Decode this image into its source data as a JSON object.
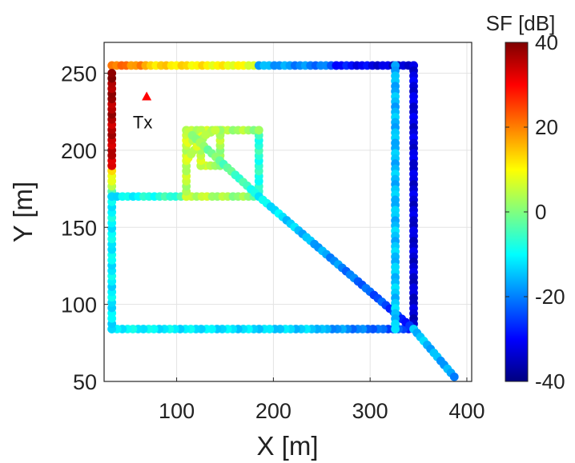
{
  "chart_data": {
    "type": "scatter",
    "xlabel": "X [m]",
    "ylabel": "Y [m]",
    "xlim": [
      25,
      405
    ],
    "ylim": [
      50,
      270
    ],
    "xticks": [
      100,
      200,
      300,
      400
    ],
    "yticks": [
      50,
      100,
      150,
      200,
      250
    ],
    "grid": true,
    "colorbar": {
      "title": "SF [dB]",
      "range": [
        -40,
        40
      ],
      "ticks": [
        40,
        20,
        0,
        -20,
        -40
      ],
      "ticklabels": [
        "40",
        "20",
        "0",
        "-20",
        "-40"
      ],
      "colormap": "jet"
    },
    "transmitter": {
      "label": "Tx",
      "x": 69,
      "y": 235,
      "color": "#ff0000"
    },
    "routes": [
      {
        "from": [
          33,
          255
        ],
        "to": [
          68,
          255
        ],
        "sf": [
          22,
          18
        ]
      },
      {
        "from": [
          68,
          255
        ],
        "to": [
          185,
          255
        ],
        "sf": [
          14,
          8
        ]
      },
      {
        "from": [
          185,
          255
        ],
        "to": [
          265,
          255
        ],
        "sf": [
          -16,
          -22
        ]
      },
      {
        "from": [
          265,
          255
        ],
        "to": [
          345,
          255
        ],
        "sf": [
          -28,
          -36
        ]
      },
      {
        "from": [
          345,
          255
        ],
        "to": [
          345,
          84
        ],
        "sf": [
          -32,
          -34
        ]
      },
      {
        "from": [
          345,
          84
        ],
        "to": [
          245,
          84
        ],
        "sf": [
          -26,
          -16
        ]
      },
      {
        "from": [
          245,
          84
        ],
        "to": [
          33,
          84
        ],
        "sf": [
          -14,
          -10
        ]
      },
      {
        "from": [
          33,
          84
        ],
        "to": [
          33,
          170
        ],
        "sf": [
          -12,
          -10
        ]
      },
      {
        "from": [
          33,
          170
        ],
        "to": [
          33,
          190
        ],
        "sf": [
          -5,
          18
        ]
      },
      {
        "from": [
          33,
          190
        ],
        "to": [
          33,
          250
        ],
        "sf": [
          34,
          38
        ]
      },
      {
        "from": [
          33,
          170
        ],
        "to": [
          110,
          170
        ],
        "sf": [
          -12,
          -4
        ]
      },
      {
        "from": [
          110,
          170
        ],
        "to": [
          185,
          170
        ],
        "sf": [
          6,
          0
        ]
      },
      {
        "from": [
          185,
          170
        ],
        "to": [
          185,
          213
        ],
        "sf": [
          -8,
          -6
        ]
      },
      {
        "from": [
          110,
          213
        ],
        "to": [
          185,
          213
        ],
        "sf": [
          6,
          2
        ]
      },
      {
        "from": [
          110,
          170
        ],
        "to": [
          110,
          213
        ],
        "sf": [
          4,
          6
        ]
      },
      {
        "from": [
          125,
          190
        ],
        "to": [
          145,
          190
        ],
        "sf": [
          4,
          5
        ]
      },
      {
        "from": [
          145,
          190
        ],
        "to": [
          145,
          213
        ],
        "sf": [
          2,
          4
        ]
      },
      {
        "from": [
          125,
          190
        ],
        "to": [
          125,
          213
        ],
        "sf": [
          5,
          6
        ]
      },
      {
        "from": [
          112,
          205
        ],
        "to": [
          140,
          213
        ],
        "sf": [
          6,
          6
        ]
      },
      {
        "from": [
          112,
          195
        ],
        "to": [
          130,
          210
        ],
        "sf": [
          6,
          5
        ]
      },
      {
        "from": [
          112,
          212
        ],
        "to": [
          185,
          170
        ],
        "sf": [
          3,
          -8
        ]
      },
      {
        "from": [
          185,
          170
        ],
        "to": [
          345,
          84
        ],
        "sf": [
          -10,
          -28
        ]
      },
      {
        "from": [
          345,
          84
        ],
        "to": [
          387,
          53
        ],
        "sf": [
          -14,
          -18
        ]
      },
      {
        "from": [
          326,
          255
        ],
        "to": [
          326,
          84
        ],
        "sf": [
          -16,
          -14
        ]
      }
    ]
  }
}
